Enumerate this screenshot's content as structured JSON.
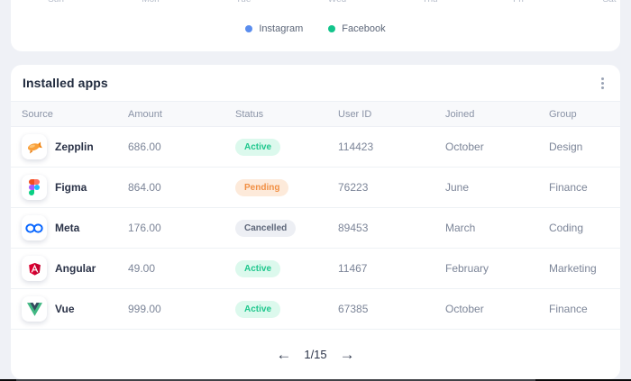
{
  "chart_card": {
    "x_labels": [
      "Sun",
      "Mon",
      "Tue",
      "Wed",
      "Thu",
      "Fri",
      "Sat"
    ],
    "legend": [
      {
        "label": "Instagram",
        "color": "#5a8dee",
        "icon": "legend-dot-icon"
      },
      {
        "label": "Facebook",
        "color": "#12c48b",
        "icon": "legend-dot-icon"
      }
    ]
  },
  "installed_apps": {
    "title": "Installed apps",
    "menu_icon": "kebab-menu-icon",
    "columns": [
      "Source",
      "Amount",
      "Status",
      "User ID",
      "Joined",
      "Group"
    ],
    "rows": [
      {
        "source": "Zepplin",
        "icon": "zepplin-icon",
        "amount": "686.00",
        "status": "Active",
        "user_id": "114423",
        "joined": "October",
        "group": "Design"
      },
      {
        "source": "Figma",
        "icon": "figma-icon",
        "amount": "864.00",
        "status": "Pending",
        "user_id": "76223",
        "joined": "June",
        "group": "Finance"
      },
      {
        "source": "Meta",
        "icon": "meta-icon",
        "amount": "176.00",
        "status": "Cancelled",
        "user_id": "89453",
        "joined": "March",
        "group": "Coding"
      },
      {
        "source": "Angular",
        "icon": "angular-icon",
        "amount": "49.00",
        "status": "Active",
        "user_id": "11467",
        "joined": "February",
        "group": "Marketing"
      },
      {
        "source": "Vue",
        "icon": "vue-icon",
        "amount": "999.00",
        "status": "Active",
        "user_id": "67385",
        "joined": "October",
        "group": "Finance"
      }
    ],
    "status_colors": {
      "Active": {
        "bg": "#dcf9ed",
        "text": "#1fc78d"
      },
      "Pending": {
        "bg": "#fdeada",
        "text": "#f18f43"
      },
      "Cancelled": {
        "bg": "#edeff4",
        "text": "#5d6679"
      }
    },
    "pagination": {
      "prev_icon": "←",
      "current": "1/15",
      "next_icon": "→"
    }
  }
}
